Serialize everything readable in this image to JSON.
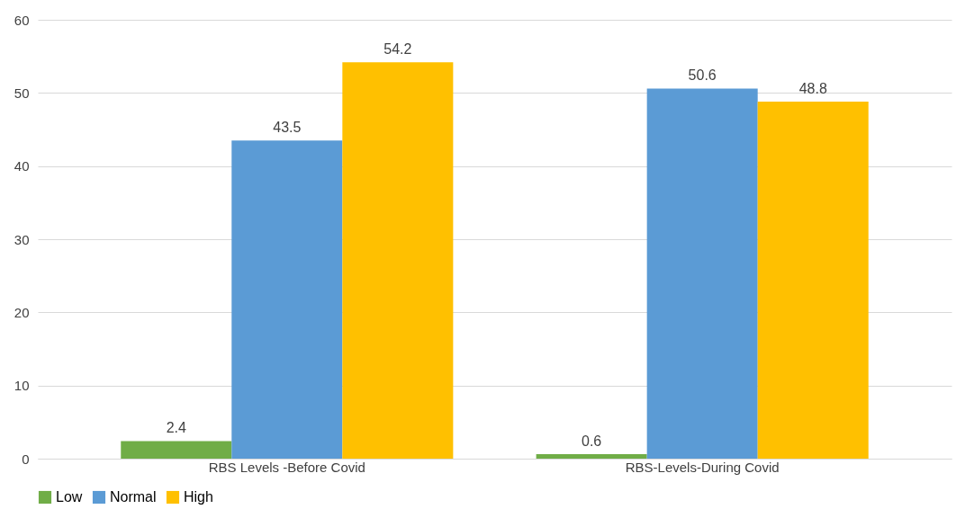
{
  "chart_data": {
    "type": "bar",
    "categories": [
      "RBS Levels -Before Covid",
      "RBS-Levels-During Covid"
    ],
    "series": [
      {
        "name": "Low",
        "color": "#70ad47",
        "values": [
          2.4,
          0.6
        ]
      },
      {
        "name": "Normal",
        "color": "#5b9bd5",
        "values": [
          43.5,
          50.6
        ]
      },
      {
        "name": "High",
        "color": "#ffc000",
        "values": [
          54.2,
          48.8
        ]
      }
    ],
    "ylim": [
      0,
      60
    ],
    "yticks": [
      0,
      10,
      20,
      30,
      40,
      50,
      60
    ],
    "grid": "y",
    "legend": "bottom",
    "data_labels": true
  }
}
